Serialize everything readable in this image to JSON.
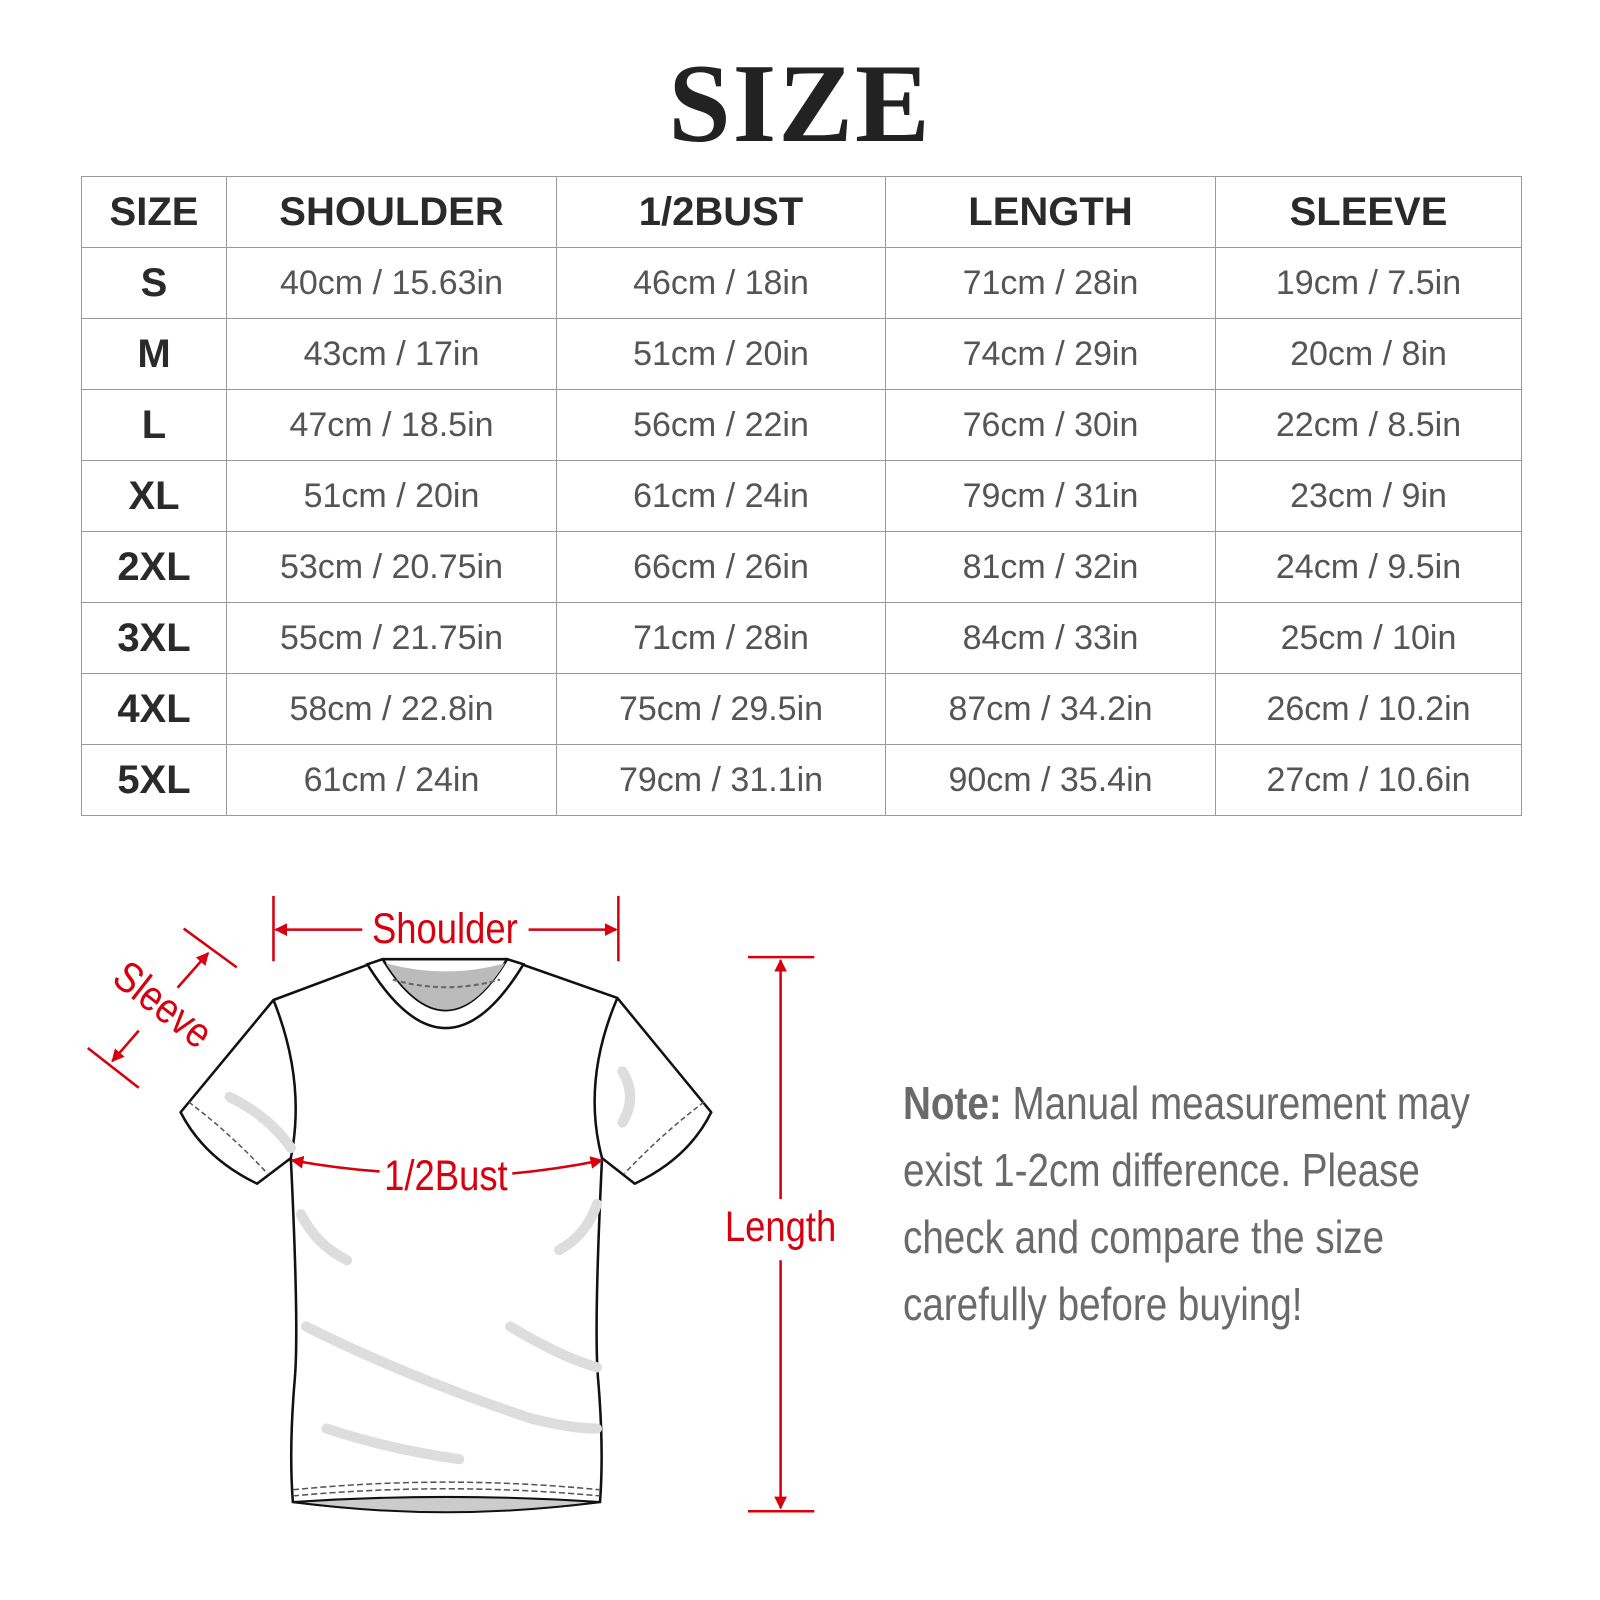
{
  "title": "SIZE",
  "table": {
    "headers": [
      "SIZE",
      "SHOULDER",
      "1/2BUST",
      "LENGTH",
      "SLEEVE"
    ],
    "rows": [
      [
        "S",
        "40cm / 15.63in",
        "46cm / 18in",
        "71cm / 28in",
        "19cm / 7.5in"
      ],
      [
        "M",
        "43cm / 17in",
        "51cm / 20in",
        "74cm / 29in",
        "20cm / 8in"
      ],
      [
        "L",
        "47cm / 18.5in",
        "56cm / 22in",
        "76cm / 30in",
        "22cm / 8.5in"
      ],
      [
        "XL",
        "51cm / 20in",
        "61cm / 24in",
        "79cm / 31in",
        "23cm / 9in"
      ],
      [
        "2XL",
        "53cm / 20.75in",
        "66cm / 26in",
        "81cm / 32in",
        "24cm / 9.5in"
      ],
      [
        "3XL",
        "55cm / 21.75in",
        "71cm / 28in",
        "84cm / 33in",
        "25cm / 10in"
      ],
      [
        "4XL",
        "58cm / 22.8in",
        "75cm / 29.5in",
        "87cm / 34.2in",
        "26cm / 10.2in"
      ],
      [
        "5XL",
        "61cm / 24in",
        "79cm / 31.1in",
        "90cm / 35.4in",
        "27cm / 10.6in"
      ]
    ]
  },
  "diagram": {
    "shoulder_label": "Shoulder",
    "sleeve_label": "Sleeve",
    "bust_label": "1/2Bust",
    "length_label": "Length",
    "accent_color": "#d7000f"
  },
  "note": {
    "label": "Note:",
    "text": "Manual measurement may exist 1-2cm difference. Please check and compare the size carefully before buying!"
  }
}
